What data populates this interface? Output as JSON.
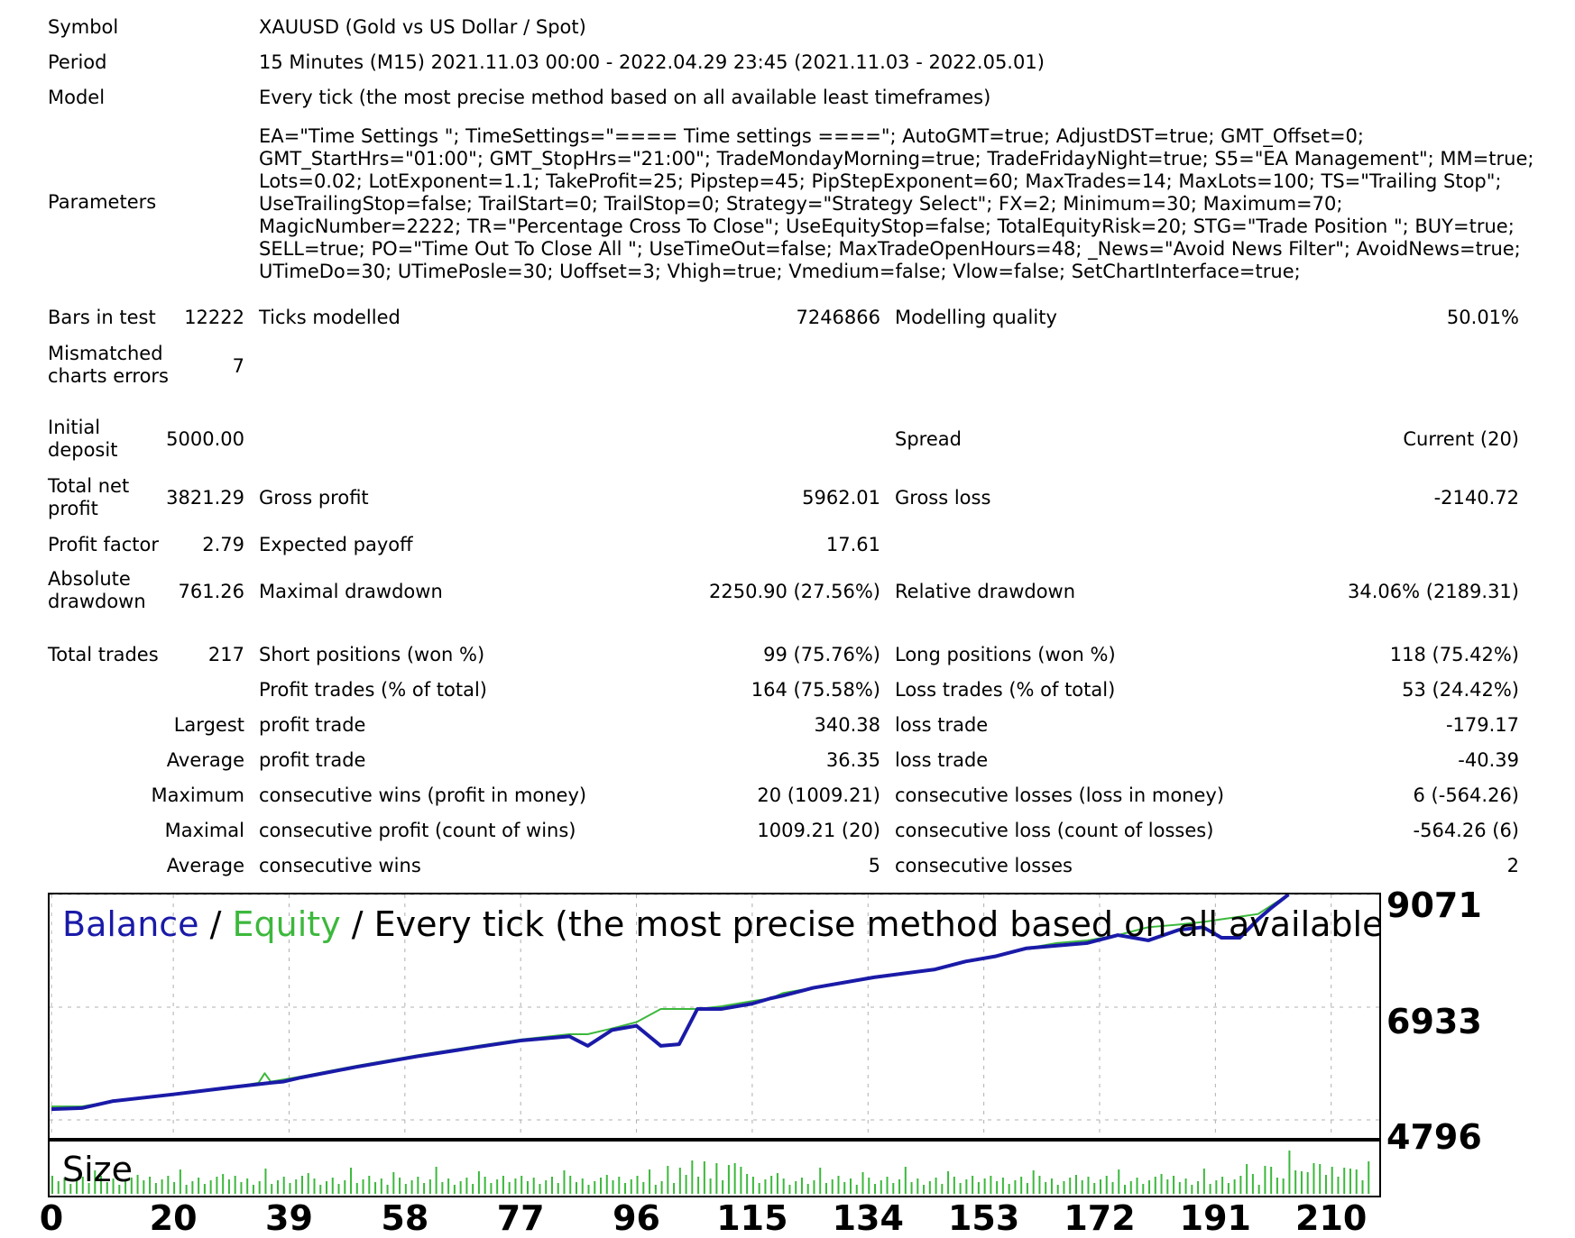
{
  "info": {
    "symbol_label": "Symbol",
    "symbol_value": "XAUUSD (Gold vs US Dollar / Spot)",
    "period_label": "Period",
    "period_value": "15 Minutes (M15) 2021.11.03 00:00 - 2022.04.29 23:45 (2021.11.03 - 2022.05.01)",
    "model_label": "Model",
    "model_value": "Every tick (the most precise method based on all available least timeframes)",
    "parameters_label": "Parameters",
    "parameters_value": "EA=\"Time Settings \"; TimeSettings=\"==== Time settings ====\"; AutoGMT=true; AdjustDST=true; GMT_Offset=0; GMT_StartHrs=\"01:00\"; GMT_StopHrs=\"21:00\"; TradeMondayMorning=true; TradeFridayNight=true; S5=\"EA Management\"; MM=true; Lots=0.02; LotExponent=1.1; TakeProfit=25; Pipstep=45; PipStepExponent=60; MaxTrades=14; MaxLots=100; TS=\"Trailing Stop\"; UseTrailingStop=false; TrailStart=0; TrailStop=0; Strategy=\"Strategy Select\"; FX=2; Minimum=30; Maximum=70; MagicNumber=2222; TR=\"Percentage Cross To Close\"; UseEquityStop=false; TotalEquityRisk=20; STG=\"Trade Position \"; BUY=true; SELL=true; PO=\"Time Out To Close All \"; UseTimeOut=false; MaxTradeOpenHours=48; _News=\"Avoid News Filter\"; AvoidNews=true; UTimeDo=30; UTimePosle=30; Uoffset=3; Vhigh=true; Vmedium=false; Vlow=false; SetChartInterface=true;"
  },
  "stats": {
    "bars_label": "Bars in test",
    "bars_value": "12222",
    "ticks_label": "Ticks modelled",
    "ticks_value": "7246866",
    "quality_label": "Modelling quality",
    "quality_value": "50.01%",
    "mismatch_label": "Mismatched charts errors",
    "mismatch_value": "7",
    "deposit_label": "Initial deposit",
    "deposit_value": "5000.00",
    "spread_label": "Spread",
    "spread_value": "Current (20)",
    "netprofit_label": "Total net profit",
    "netprofit_value": "3821.29",
    "grossprofit_label": "Gross profit",
    "grossprofit_value": "5962.01",
    "grossloss_label": "Gross loss",
    "grossloss_value": "-2140.72",
    "pf_label": "Profit factor",
    "pf_value": "2.79",
    "payoff_label": "Expected payoff",
    "payoff_value": "17.61",
    "absdd_label": "Absolute drawdown",
    "absdd_value": "761.26",
    "maxdd_label": "Maximal drawdown",
    "maxdd_value": "2250.90 (27.56%)",
    "reldd_label": "Relative drawdown",
    "reldd_value": "34.06% (2189.31)",
    "trades_label": "Total trades",
    "trades_value": "217",
    "short_label": "Short positions (won %)",
    "short_value": "99 (75.76%)",
    "long_label": "Long positions (won %)",
    "long_value": "118 (75.42%)",
    "ptrades_label": "Profit trades (% of total)",
    "ptrades_value": "164 (75.58%)",
    "ltrades_label": "Loss trades (% of total)",
    "ltrades_value": "53 (24.42%)",
    "largest_label": "Largest",
    "largest_profit_label": "profit trade",
    "largest_profit_value": "340.38",
    "largest_loss_label": "loss trade",
    "largest_loss_value": "-179.17",
    "average_label": "Average",
    "average_profit_label": "profit trade",
    "average_profit_value": "36.35",
    "average_loss_label": "loss trade",
    "average_loss_value": "-40.39",
    "maximum_label": "Maximum",
    "max_wins_label": "consecutive wins (profit in money)",
    "max_wins_value": "20 (1009.21)",
    "max_losses_label": "consecutive losses (loss in money)",
    "max_losses_value": "6 (-564.26)",
    "maximal_label": "Maximal",
    "maximal_profit_label": "consecutive profit (count of wins)",
    "maximal_profit_value": "1009.21 (20)",
    "maximal_loss_label": "consecutive loss (count of losses)",
    "maximal_loss_value": "-564.26 (6)",
    "average2_label": "Average",
    "avg_wins_label": "consecutive wins",
    "avg_wins_value": "5",
    "avg_losses_label": "consecutive losses",
    "avg_losses_value": "2"
  },
  "chart": {
    "title_balance": "Balance",
    "title_sep1": " / ",
    "title_equity": "Equity",
    "title_rest": " / Every tick (the most precise method based on all available least time",
    "size_label": "Size",
    "y_labels": [
      "9071",
      "6933",
      "4796"
    ],
    "x_labels": [
      "0",
      "20",
      "39",
      "58",
      "77",
      "96",
      "115",
      "134",
      "153",
      "172",
      "191",
      "210"
    ],
    "colors": {
      "balance": "#1a1aa8",
      "equity": "#3cb83c",
      "grid": "#b0b0b0",
      "size": "#3cb83c"
    }
  },
  "chart_data": {
    "type": "line",
    "title": "Balance / Equity / Every tick (the most precise method based on all available least time",
    "ylim": [
      4796,
      9071
    ],
    "xlim": [
      0,
      217
    ],
    "y_ticks": [
      9071,
      6933,
      4796
    ],
    "x_ticks": [
      0,
      20,
      39,
      58,
      77,
      96,
      115,
      134,
      153,
      172,
      191,
      210
    ],
    "series": [
      {
        "name": "Balance",
        "x": [
          0,
          5,
          10,
          20,
          30,
          36,
          38,
          41,
          50,
          60,
          70,
          77,
          85,
          88,
          92,
          96,
          100,
          103,
          106,
          110,
          115,
          118,
          120,
          125,
          135,
          145,
          150,
          155,
          160,
          165,
          170,
          175,
          180,
          185,
          189,
          192,
          195,
          198,
          200,
          203
        ],
        "y": [
          5000,
          5020,
          5150,
          5280,
          5420,
          5500,
          5520,
          5600,
          5800,
          6000,
          6180,
          6300,
          6380,
          6200,
          6500,
          6580,
          6200,
          6230,
          6900,
          6900,
          7000,
          7100,
          7150,
          7300,
          7500,
          7650,
          7800,
          7900,
          8050,
          8100,
          8150,
          8300,
          8200,
          8400,
          8450,
          8250,
          8250,
          8600,
          8800,
          9071
        ]
      },
      {
        "name": "Equity",
        "x": [
          0,
          5,
          10,
          20,
          30,
          34,
          35,
          36,
          38,
          41,
          50,
          60,
          70,
          77,
          85,
          88,
          92,
          96,
          100,
          103,
          106,
          110,
          115,
          118,
          120,
          125,
          135,
          145,
          150,
          155,
          160,
          165,
          170,
          175,
          180,
          185,
          189,
          192,
          195,
          198,
          200,
          203
        ],
        "y": [
          5050,
          5050,
          5150,
          5280,
          5420,
          5500,
          5680,
          5520,
          5560,
          5620,
          5820,
          6020,
          6200,
          6320,
          6420,
          6420,
          6530,
          6650,
          6900,
          6900,
          6900,
          6950,
          7050,
          7100,
          7200,
          7300,
          7500,
          7650,
          7800,
          7900,
          8050,
          8150,
          8200,
          8300,
          8450,
          8500,
          8550,
          8600,
          8650,
          8700,
          8850,
          9071
        ]
      }
    ]
  }
}
